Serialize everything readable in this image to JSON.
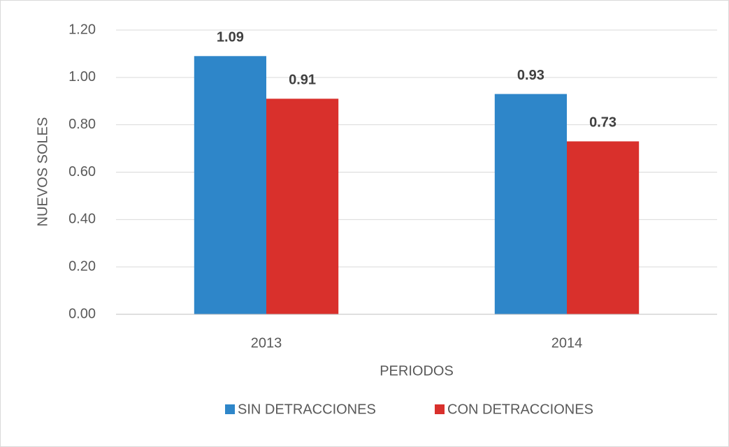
{
  "chart_data": {
    "type": "bar",
    "categories": [
      "2013",
      "2014"
    ],
    "series": [
      {
        "name": "SIN DETRACCIONES",
        "color": "#2e86c9",
        "values": [
          1.09,
          0.93
        ]
      },
      {
        "name": "CON DETRACCIONES",
        "color": "#d9302c",
        "values": [
          0.91,
          0.73
        ]
      }
    ],
    "ylim": [
      0,
      1.2
    ],
    "yticks": [
      {
        "value": 0,
        "label": "0.00"
      },
      {
        "value": 0.2,
        "label": "0.20"
      },
      {
        "value": 0.4,
        "label": "0.40"
      },
      {
        "value": 0.6,
        "label": "0.60"
      },
      {
        "value": 0.8,
        "label": "0.80"
      },
      {
        "value": 1.0,
        "label": "1.00"
      },
      {
        "value": 1.2,
        "label": "1.20"
      }
    ],
    "x_label": "PERIODOS",
    "y_label": "NUEVOS SOLES",
    "grid": true,
    "legend": "bottom"
  }
}
